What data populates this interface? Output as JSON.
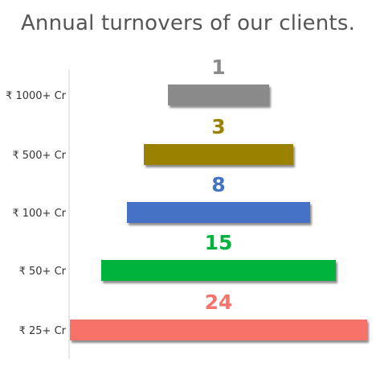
{
  "chart_data": {
    "type": "bar",
    "title": "Annual turnovers of our clients.",
    "categories": [
      "₹ 1000+ Cr",
      "₹ 500+ Cr",
      "₹ 100+ Cr",
      "₹ 50+ Cr",
      "₹ 25+ Cr"
    ],
    "values": [
      1,
      3,
      8,
      15,
      24
    ],
    "labels": [
      "1",
      "3",
      "8",
      "15",
      "24"
    ],
    "colors": [
      "#8a8a8a",
      "#9a8200",
      "#4472c4",
      "#00b33c",
      "#f7736b"
    ],
    "xlabel": "",
    "ylabel": "",
    "grid": false,
    "legend": "none"
  }
}
